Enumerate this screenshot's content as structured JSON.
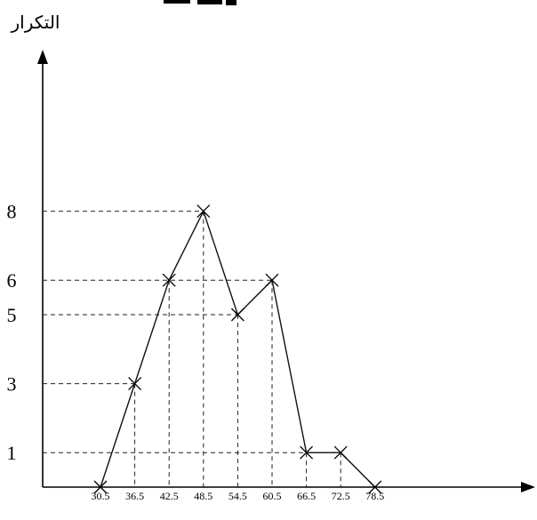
{
  "chart_data": {
    "type": "line",
    "ylabel": "التكرار",
    "xlabel": "",
    "x": [
      30.5,
      36.5,
      42.5,
      48.5,
      54.5,
      60.5,
      66.5,
      72.5,
      78.5
    ],
    "x_tick_labels": [
      "30.5",
      "36.5",
      "42.5",
      "48.5",
      "54.5",
      "60.5",
      "66.5",
      "72.5",
      "78.5"
    ],
    "y": [
      0,
      3,
      6,
      8,
      5,
      6,
      1,
      1,
      0
    ],
    "y_ticks": [
      1,
      3,
      5,
      6,
      8
    ],
    "ylim": [
      0,
      10
    ],
    "markers": "x",
    "guide_lines": "dashed",
    "colors": {
      "line": "#111111",
      "guides": "#222222"
    }
  }
}
